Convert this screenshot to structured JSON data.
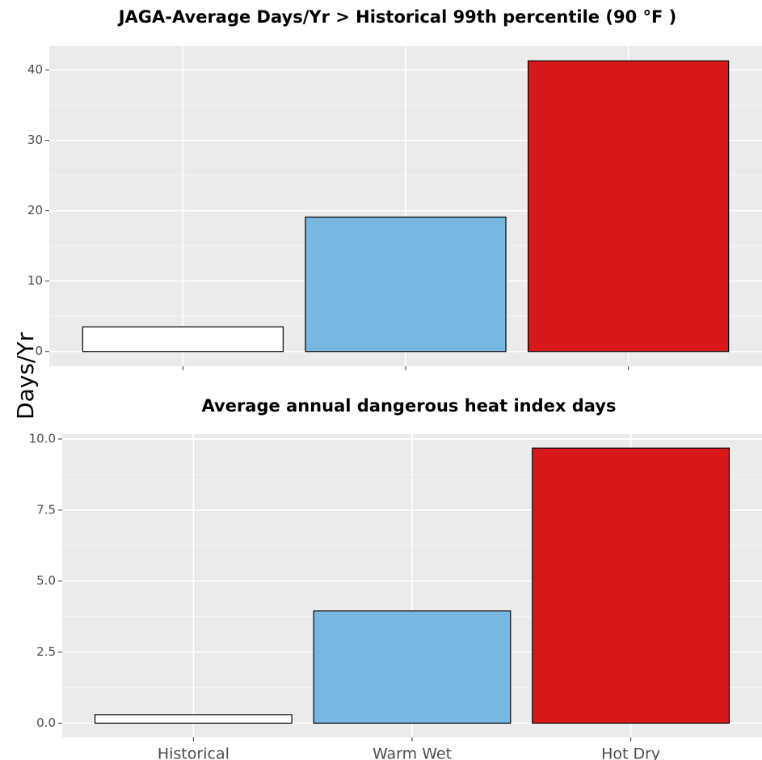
{
  "y_axis_label": "Days/Yr",
  "categories": [
    "Historical",
    "Warm Wet",
    "Hot Dry"
  ],
  "colors": {
    "panel_background": "#ebebeb",
    "grid_major": "#ffffff",
    "grid_minor": "#f5f5f5",
    "bar_outline": "#000000",
    "tick_text": "#4d4d4d"
  },
  "chart_data": [
    {
      "type": "bar",
      "title": "JAGA-Average Days/Yr > Historical 99th percentile (90 °F )",
      "categories": [
        "Historical",
        "Warm Wet",
        "Hot Dry"
      ],
      "values": [
        3.5,
        19.1,
        41.3
      ],
      "bar_colors": [
        "#ffffff",
        "#77b7e1",
        "#d7191c"
      ],
      "ylim": [
        -2.1,
        43.4
      ],
      "yticks": [
        0,
        10,
        20,
        30,
        40
      ],
      "ytick_labels": [
        "0",
        "10",
        "20",
        "30",
        "40"
      ],
      "show_x_tick_labels": false,
      "grid": true,
      "legend": "none"
    },
    {
      "type": "bar",
      "title": "Average annual dangerous heat index days",
      "categories": [
        "Historical",
        "Warm Wet",
        "Hot Dry"
      ],
      "values": [
        0.3,
        3.95,
        9.68
      ],
      "bar_colors": [
        "#ffffff",
        "#77b7e1",
        "#d7191c"
      ],
      "ylim": [
        -0.5,
        10.17
      ],
      "yticks": [
        0,
        2.5,
        5,
        7.5,
        10
      ],
      "ytick_labels": [
        "0.0",
        "2.5",
        "5.0",
        "7.5",
        "10.0"
      ],
      "show_x_tick_labels": true,
      "grid": true,
      "legend": "none"
    }
  ]
}
